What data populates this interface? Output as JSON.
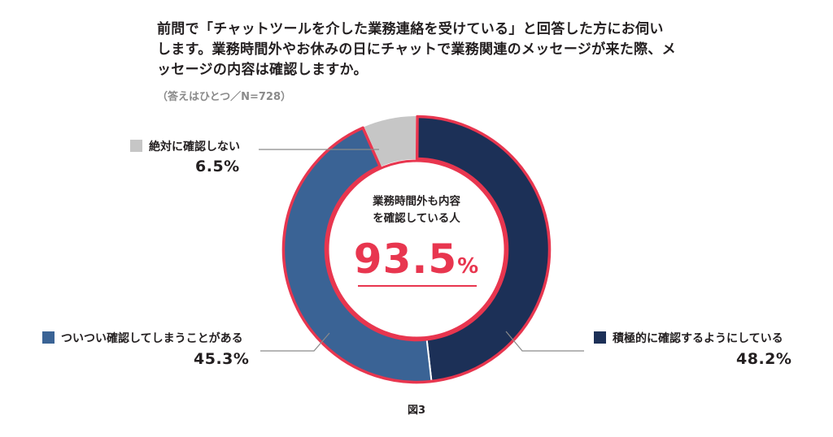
{
  "question": {
    "lines": [
      "前問で「チャットツールを介した業務連絡を受けている」と回答した方にお伺い",
      "します。業務時間外やお休みの日にチャットで業務関連のメッセージが来た際、メ",
      "ッセージの内容は確認しますか。"
    ],
    "note": "（答えはひとつ／N=728）"
  },
  "center": {
    "label_line1": "業務時間外も内容",
    "label_line2": "を確認している人",
    "value": "93.5",
    "unit": "%"
  },
  "legend": {
    "never": {
      "label": "絶対に確認しない",
      "pct": "6.5%"
    },
    "sometimes": {
      "label": "ついつい確認してしまうことがある",
      "pct": "45.3%"
    },
    "actively": {
      "label": "積極的に確認するようにしている",
      "pct": "48.2%"
    }
  },
  "caption": "図3",
  "colors": {
    "actively": "#1c3057",
    "sometimes": "#3a6395",
    "never": "#c6c6c6",
    "highlight": "#e8364f"
  },
  "chart_data": {
    "type": "pie",
    "style": "donut",
    "start": "12 o'clock, clockwise",
    "categories": [
      "積極的に確認するようにしている",
      "ついつい確認してしまうことがある",
      "絶対に確認しない"
    ],
    "values": [
      48.2,
      45.3,
      6.5
    ],
    "unit": "%",
    "n": 728,
    "highlighted_total": {
      "categories": [
        "積極的に確認するようにしている",
        "ついつい確認してしまうことがある"
      ],
      "value": 93.5
    }
  }
}
